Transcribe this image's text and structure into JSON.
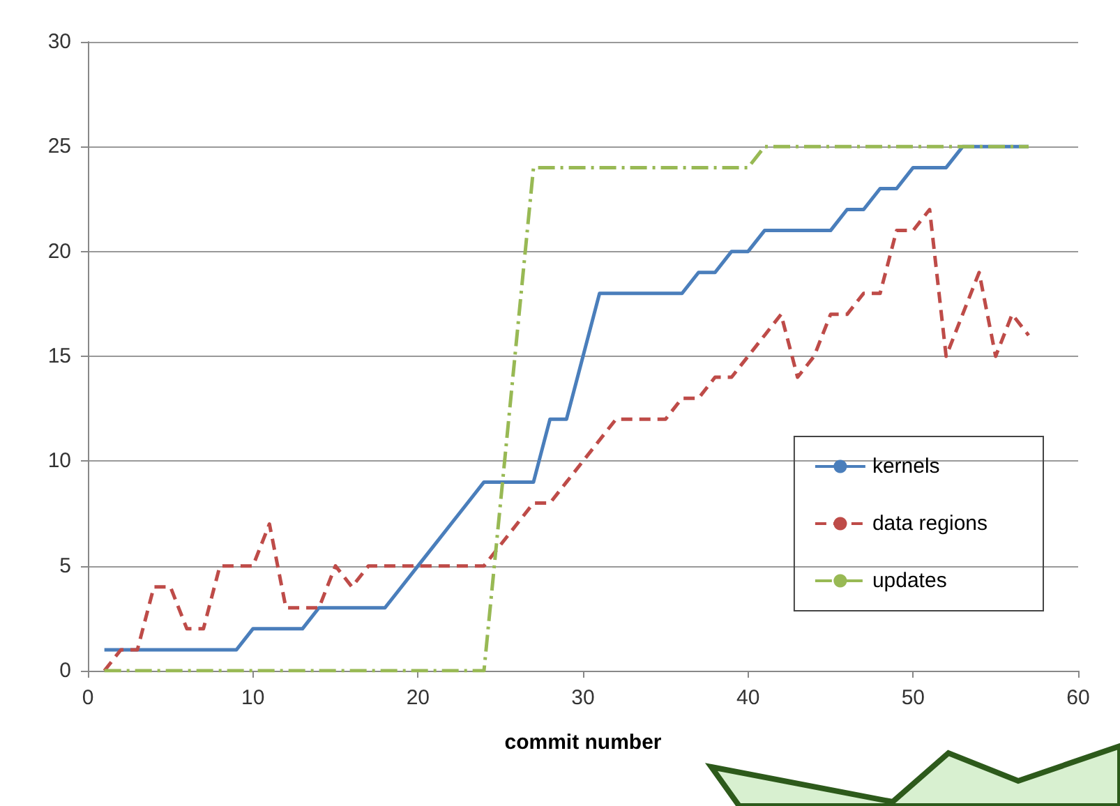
{
  "chart_data": {
    "type": "line",
    "xlabel": "commit number",
    "x": [
      1,
      2,
      3,
      4,
      5,
      6,
      7,
      8,
      9,
      10,
      11,
      12,
      13,
      14,
      15,
      16,
      17,
      18,
      19,
      20,
      21,
      22,
      23,
      24,
      25,
      26,
      27,
      28,
      29,
      30,
      31,
      32,
      33,
      34,
      35,
      36,
      37,
      38,
      39,
      40,
      41,
      42,
      43,
      44,
      45,
      46,
      47,
      48,
      49,
      50,
      51,
      52,
      53,
      54,
      55,
      56,
      57
    ],
    "series": [
      {
        "name": "kernels",
        "color": "#4a7ebb",
        "line_style": "solid",
        "values": [
          1,
          1,
          1,
          1,
          1,
          1,
          1,
          1,
          1,
          2,
          2,
          2,
          2,
          3,
          3,
          3,
          3,
          3,
          4,
          5,
          6,
          7,
          8,
          9,
          9,
          9,
          9,
          12,
          12,
          15,
          18,
          18,
          18,
          18,
          18,
          18,
          19,
          19,
          20,
          20,
          21,
          21,
          21,
          21,
          21,
          22,
          22,
          23,
          23,
          24,
          24,
          24,
          25,
          25,
          25,
          25,
          25
        ]
      },
      {
        "name": "data regions",
        "color": "#be4b48",
        "line_style": "dashed",
        "values": [
          0,
          1,
          1,
          4,
          4,
          2,
          2,
          5,
          5,
          5,
          7,
          3,
          3,
          3,
          5,
          4,
          5,
          5,
          5,
          5,
          5,
          5,
          5,
          5,
          6,
          7,
          8,
          8,
          9,
          10,
          11,
          12,
          12,
          12,
          12,
          13,
          13,
          14,
          14,
          15,
          16,
          17,
          14,
          15,
          17,
          17,
          18,
          18,
          21,
          21,
          22,
          15,
          17,
          19,
          15,
          17,
          16
        ]
      },
      {
        "name": "updates",
        "color": "#98b954",
        "line_style": "dashdot",
        "values": [
          0,
          0,
          0,
          0,
          0,
          0,
          0,
          0,
          0,
          0,
          0,
          0,
          0,
          0,
          0,
          0,
          0,
          0,
          0,
          0,
          0,
          0,
          0,
          0,
          8,
          16,
          24,
          24,
          24,
          24,
          24,
          24,
          24,
          24,
          24,
          24,
          24,
          24,
          24,
          24,
          25,
          25,
          25,
          25,
          25,
          25,
          25,
          25,
          25,
          25,
          25,
          25,
          25,
          25,
          25,
          25,
          25
        ]
      }
    ],
    "xlim": [
      0,
      60
    ],
    "xticks": [
      0,
      10,
      20,
      30,
      40,
      50,
      60
    ],
    "ylim": [
      0,
      30
    ],
    "yticks": [
      0,
      5,
      10,
      15,
      20,
      25,
      30
    ],
    "grid": "y",
    "legend": "right",
    "marker": "none"
  }
}
